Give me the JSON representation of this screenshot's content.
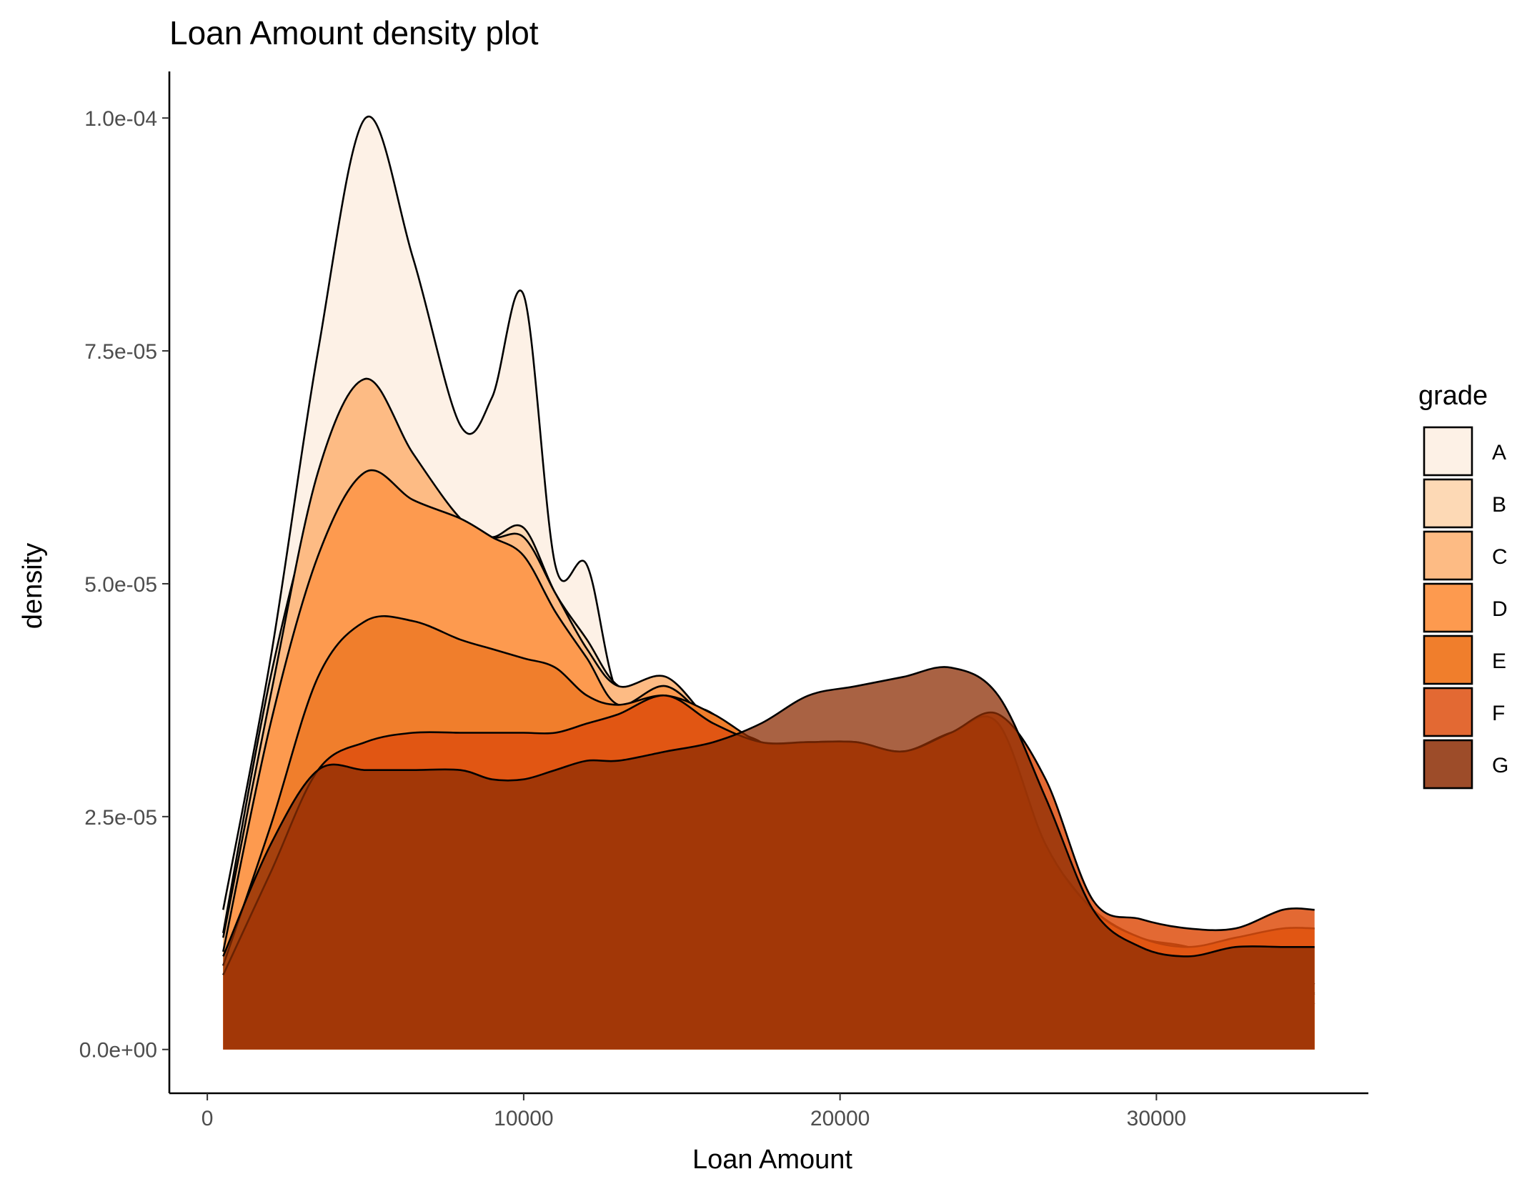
{
  "chart_data": {
    "type": "area",
    "title": "Loan Amount density plot",
    "xlabel": "Loan Amount",
    "ylabel": "density",
    "xlim": [
      -1200,
      36700
    ],
    "ylim": [
      -4.7e-06,
      0.000105
    ],
    "x_ticks": [
      0,
      10000,
      20000,
      30000
    ],
    "x_tick_labels": [
      "0",
      "10000",
      "20000",
      "30000"
    ],
    "y_ticks": [
      0,
      2.5e-05,
      5e-05,
      7.5e-05,
      0.0001
    ],
    "y_tick_labels": [
      "0.0e+00",
      "2.5e-05",
      "5.0e-05",
      "7.5e-05",
      "1.0e-04"
    ],
    "grid": false,
    "legend": {
      "title": "grade",
      "position": "right"
    },
    "x": [
      500,
      2000,
      3500,
      5000,
      6500,
      8000,
      9000,
      10000,
      11000,
      12000,
      13000,
      14500,
      16000,
      17500,
      19000,
      20500,
      22000,
      23500,
      25000,
      26500,
      28000,
      29500,
      31000,
      32500,
      34000,
      35000
    ],
    "series": [
      {
        "name": "A",
        "color": "#fdf1e6",
        "opacity": 1.0,
        "values": [
          1.5e-05,
          4.2e-05,
          7.5e-05,
          0.0001,
          8.5e-05,
          6.7e-05,
          7e-05,
          8.1e-05,
          5.2e-05,
          5.2e-05,
          3.8e-05,
          3.7e-05,
          3.6e-05,
          3e-05,
          2.2e-05,
          2.4e-05,
          1.3e-05,
          1.8e-05,
          2.5e-05,
          1.8e-05,
          7e-06,
          4e-06,
          2e-06,
          1e-06,
          3e-06,
          5e-06
        ]
      },
      {
        "name": "B",
        "color": "#fdd9b5",
        "opacity": 1.0,
        "values": [
          1.25e-05,
          4e-05,
          6e-05,
          7.2e-05,
          6.2e-05,
          5.6e-05,
          5.5e-05,
          5.6e-05,
          4.9e-05,
          4.4e-05,
          3.9e-05,
          3.8e-05,
          3.4e-05,
          3.1e-05,
          2.6e-05,
          2.5e-05,
          2e-05,
          2e-05,
          2.4e-05,
          1.9e-05,
          1e-05,
          6e-06,
          4e-06,
          2e-06,
          4e-06,
          6e-06
        ]
      },
      {
        "name": "C",
        "color": "#fdbb84",
        "opacity": 1.0,
        "values": [
          1.2e-05,
          3.8e-05,
          6.2e-05,
          7.2e-05,
          6.4e-05,
          5.7e-05,
          5.5e-05,
          5.5e-05,
          4.9e-05,
          4.3e-05,
          3.9e-05,
          4e-05,
          3.5e-05,
          3.3e-05,
          2.9e-05,
          2.7e-05,
          2.4e-05,
          2.2e-05,
          2.4e-05,
          1.9e-05,
          1.2e-05,
          1.1e-05,
          1.1e-05,
          8e-06,
          8e-06,
          6e-06
        ]
      },
      {
        "name": "D",
        "color": "#fd9a4f",
        "opacity": 1.0,
        "values": [
          1.05e-05,
          3.5e-05,
          5.3e-05,
          6.2e-05,
          5.9e-05,
          5.7e-05,
          5.5e-05,
          5.3e-05,
          4.7e-05,
          4.2e-05,
          3.7e-05,
          3.9e-05,
          3.5e-05,
          3.3e-05,
          3.1e-05,
          2.9e-05,
          2.7e-05,
          2.5e-05,
          2.5e-05,
          2.1e-05,
          1.5e-05,
          1.2e-05,
          1.1e-05,
          9e-06,
          9e-06,
          7e-06
        ]
      },
      {
        "name": "E",
        "color": "#f07e2c",
        "opacity": 1.0,
        "values": [
          9e-06,
          2.4e-05,
          4e-05,
          4.6e-05,
          4.6e-05,
          4.4e-05,
          4.3e-05,
          4.2e-05,
          4.1e-05,
          3.8e-05,
          3.7e-05,
          3.8e-05,
          3.6e-05,
          3.3e-05,
          3.3e-05,
          3.3e-05,
          3.2e-05,
          3.4e-05,
          3.5e-05,
          2.2e-05,
          1.5e-05,
          1.2e-05,
          1.1e-05,
          1.2e-05,
          1.3e-05,
          1.3e-05
        ]
      },
      {
        "name": "F",
        "color": "#de4f0f",
        "opacity": 0.85,
        "values": [
          8e-06,
          1.9e-05,
          3e-05,
          3.3e-05,
          3.4e-05,
          3.4e-05,
          3.4e-05,
          3.4e-05,
          3.4e-05,
          3.5e-05,
          3.6e-05,
          3.8e-05,
          3.5e-05,
          3.3e-05,
          3.3e-05,
          3.3e-05,
          3.2e-05,
          3.4e-05,
          3.6e-05,
          2.9e-05,
          1.6e-05,
          1.4e-05,
          1.3e-05,
          1.3e-05,
          1.5e-05,
          1.5e-05
        ]
      },
      {
        "name": "G",
        "color": "#8c2d04",
        "opacity": 0.75,
        "values": [
          1e-05,
          2.2e-05,
          3e-05,
          3e-05,
          3e-05,
          3e-05,
          2.9e-05,
          2.9e-05,
          3e-05,
          3.1e-05,
          3.1e-05,
          3.2e-05,
          3.3e-05,
          3.5e-05,
          3.8e-05,
          3.9e-05,
          4e-05,
          4.1e-05,
          3.8e-05,
          2.7e-05,
          1.5e-05,
          1.1e-05,
          1e-05,
          1.1e-05,
          1.1e-05,
          1.1e-05
        ]
      }
    ]
  }
}
